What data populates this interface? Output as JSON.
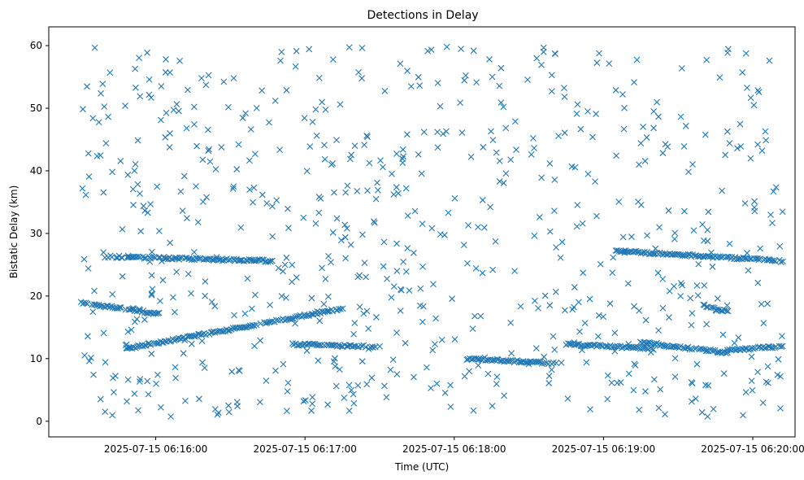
{
  "chart_data": {
    "type": "scatter",
    "title": "Detections in Delay",
    "xlabel": "Time (UTC)",
    "ylabel": "Bistatic Delay (km)",
    "x_axis_type": "datetime",
    "xlim": [
      "2025-07-15 06:15:17",
      "2025-07-15 06:20:17"
    ],
    "ylim": [
      -2.5,
      63
    ],
    "grid": false,
    "legend": "none",
    "marker": "x",
    "colors": {
      "series": "#1f77b4",
      "axes": "#000000",
      "background": "#ffffff"
    },
    "x_ticks": [
      {
        "value": "2025-07-15 06:16:00",
        "label": "2025-07-15 06:16:00"
      },
      {
        "value": "2025-07-15 06:17:00",
        "label": "2025-07-15 06:17:00"
      },
      {
        "value": "2025-07-15 06:18:00",
        "label": "2025-07-15 06:18:00"
      },
      {
        "value": "2025-07-15 06:19:00",
        "label": "2025-07-15 06:19:00"
      },
      {
        "value": "2025-07-15 06:20:00",
        "label": "2025-07-15 06:20:00"
      }
    ],
    "y_ticks": [
      {
        "value": 0,
        "label": "0"
      },
      {
        "value": 10,
        "label": "10"
      },
      {
        "value": 20,
        "label": "20"
      },
      {
        "value": 30,
        "label": "30"
      },
      {
        "value": 40,
        "label": "40"
      },
      {
        "value": 50,
        "label": "50"
      },
      {
        "value": 60,
        "label": "60"
      }
    ],
    "tracks": [
      {
        "start": "2025-07-15 06:15:30",
        "end": "2025-07-15 06:16:02",
        "y_start": 18.9,
        "y_end": 17.1
      },
      {
        "start": "2025-07-15 06:15:41",
        "end": "2025-07-15 06:16:47",
        "y_start": 26.3,
        "y_end": 25.6
      },
      {
        "start": "2025-07-15 06:15:48",
        "end": "2025-07-15 06:17:15",
        "y_start": 11.6,
        "y_end": 18.0
      },
      {
        "start": "2025-07-15 06:16:55",
        "end": "2025-07-15 06:17:30",
        "y_start": 12.3,
        "y_end": 11.9
      },
      {
        "start": "2025-07-15 06:18:05",
        "end": "2025-07-15 06:18:43",
        "y_start": 10.0,
        "y_end": 9.2
      },
      {
        "start": "2025-07-15 06:18:45",
        "end": "2025-07-15 06:19:20",
        "y_start": 12.3,
        "y_end": 11.6
      },
      {
        "start": "2025-07-15 06:19:05",
        "end": "2025-07-15 06:20:12",
        "y_start": 27.2,
        "y_end": 25.6
      },
      {
        "start": "2025-07-15 06:19:15",
        "end": "2025-07-15 06:19:50",
        "y_start": 12.6,
        "y_end": 10.9
      },
      {
        "start": "2025-07-15 06:19:50",
        "end": "2025-07-15 06:20:12",
        "y_start": 11.3,
        "y_end": 12.0
      },
      {
        "start": "2025-07-15 06:19:40",
        "end": "2025-07-15 06:19:50",
        "y_start": 18.5,
        "y_end": 17.5
      }
    ],
    "background_detections": {
      "count": 700,
      "x_range": [
        "2025-07-15 06:15:30",
        "2025-07-15 06:20:12"
      ],
      "y_range": [
        0.7,
        60.0
      ]
    }
  }
}
